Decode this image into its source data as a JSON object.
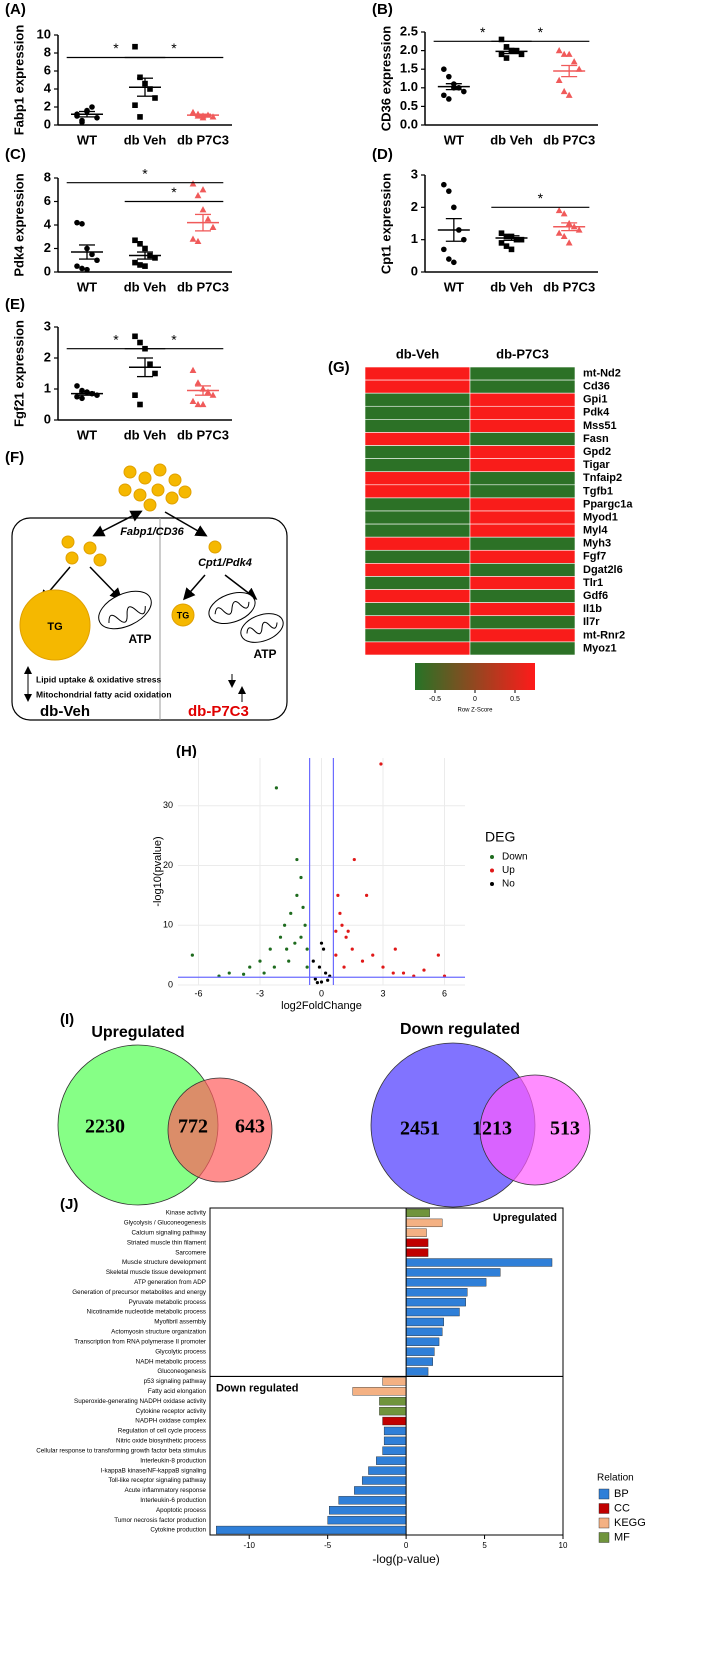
{
  "chart_data": [
    {
      "type": "dot",
      "panel": "(A)",
      "ylabel": "Fabp1 expression",
      "categories": [
        "WT",
        "db Veh",
        "db P7C3"
      ],
      "ylim": [
        0,
        10
      ],
      "yticks": [
        0,
        2,
        4,
        6,
        8,
        10
      ],
      "groups": [
        {
          "color": "#000000",
          "marker": "circle",
          "values": [
            1.0,
            0.5,
            1.5,
            2.0,
            0.8,
            1.2,
            0.3,
            1.6
          ],
          "mean": 1.2,
          "sem": 0.3
        },
        {
          "color": "#000000",
          "marker": "square",
          "values": [
            8.7,
            5.3,
            4.6,
            4.0,
            3.0,
            2.2,
            0.9
          ],
          "mean": 4.2,
          "sem": 1.0
        },
        {
          "color": "#f05a5a",
          "marker": "triangle",
          "values": [
            1.4,
            1.2,
            1.0,
            1.1,
            0.9,
            1.3,
            1.0,
            0.8
          ],
          "mean": 1.1,
          "sem": 0.1
        }
      ],
      "significance": [
        {
          "label": "*",
          "groups": [
            0,
            1
          ],
          "y": 7.5
        },
        {
          "label": "*",
          "groups": [
            1,
            2
          ],
          "y": 7.5
        }
      ]
    },
    {
      "type": "dot",
      "panel": "(B)",
      "ylabel": "CD36 expression",
      "categories": [
        "WT",
        "db Veh",
        "db P7C3"
      ],
      "ylim": [
        0,
        2.5
      ],
      "yticks": [
        {
          "value": 0,
          "label": "0.0"
        },
        0.5,
        {
          "value": 1,
          "label": "1.0"
        },
        1.5,
        {
          "value": 2,
          "label": "2.0"
        },
        2.5
      ],
      "groups": [
        {
          "color": "#000000",
          "marker": "circle",
          "values": [
            1.5,
            1.3,
            1.1,
            1.0,
            0.9,
            0.8,
            0.7,
            1.0
          ],
          "mean": 1.03,
          "sem": 0.08
        },
        {
          "color": "#000000",
          "marker": "square",
          "values": [
            2.3,
            2.1,
            2.0,
            2.0,
            1.9,
            1.9,
            1.8,
            2.0
          ],
          "mean": 1.98,
          "sem": 0.06
        },
        {
          "color": "#f05a5a",
          "marker": "triangle",
          "values": [
            2.0,
            1.9,
            1.9,
            1.7,
            1.5,
            1.2,
            0.9,
            0.8
          ],
          "mean": 1.45,
          "sem": 0.15
        }
      ],
      "significance": [
        {
          "label": "*",
          "groups": [
            0,
            1
          ],
          "y": 2.25
        },
        {
          "label": "*",
          "groups": [
            1,
            2
          ],
          "y": 2.25
        }
      ]
    },
    {
      "type": "dot",
      "panel": "(C)",
      "ylabel": "Pdk4 expression",
      "categories": [
        "WT",
        "db Veh",
        "db P7C3"
      ],
      "ylim": [
        0,
        8
      ],
      "yticks": [
        0,
        2,
        4,
        6,
        8
      ],
      "groups": [
        {
          "color": "#000000",
          "marker": "circle",
          "values": [
            4.2,
            4.1,
            2.0,
            1.5,
            1.0,
            0.5,
            0.3,
            0.2
          ],
          "mean": 1.7,
          "sem": 0.6
        },
        {
          "color": "#000000",
          "marker": "square",
          "values": [
            2.7,
            2.4,
            2.0,
            1.4,
            1.2,
            0.8,
            0.6,
            0.5
          ],
          "mean": 1.4,
          "sem": 0.3
        },
        {
          "color": "#f05a5a",
          "marker": "triangle",
          "values": [
            7.5,
            6.5,
            5.3,
            4.5,
            3.8,
            2.8,
            2.6,
            7.0
          ],
          "mean": 4.2,
          "sem": 0.7
        }
      ],
      "significance": [
        {
          "label": "*",
          "groups": [
            0,
            2
          ],
          "y": 7.6
        },
        {
          "label": "*",
          "groups": [
            1,
            2
          ],
          "y": 6.0
        }
      ]
    },
    {
      "type": "dot",
      "panel": "(D)",
      "ylabel": "Cpt1 expression",
      "categories": [
        "WT",
        "db Veh",
        "db P7C3"
      ],
      "ylim": [
        0,
        3
      ],
      "yticks": [
        0,
        1,
        2,
        3
      ],
      "groups": [
        {
          "color": "#000000",
          "marker": "circle",
          "values": [
            2.7,
            2.5,
            2.0,
            1.3,
            1.0,
            0.7,
            0.4,
            0.3
          ],
          "mean": 1.3,
          "sem": 0.35
        },
        {
          "color": "#000000",
          "marker": "square",
          "values": [
            1.2,
            1.1,
            1.1,
            1.0,
            1.0,
            0.9,
            0.8,
            0.7
          ],
          "mean": 1.05,
          "sem": 0.07
        },
        {
          "color": "#f05a5a",
          "marker": "triangle",
          "values": [
            1.9,
            1.8,
            1.5,
            1.4,
            1.3,
            1.2,
            1.1,
            0.9
          ],
          "mean": 1.4,
          "sem": 0.12
        }
      ],
      "significance": [
        {
          "label": "*",
          "groups": [
            1,
            2
          ],
          "y": 2.0
        }
      ]
    },
    {
      "type": "dot",
      "panel": "(E)",
      "ylabel": "Fgf21 expression",
      "categories": [
        "WT",
        "db Veh",
        "db P7C3"
      ],
      "ylim": [
        0,
        3
      ],
      "yticks": [
        0,
        1,
        2,
        3
      ],
      "groups": [
        {
          "color": "#000000",
          "marker": "circle",
          "values": [
            1.1,
            0.95,
            0.9,
            0.85,
            0.8,
            0.75,
            0.7
          ],
          "mean": 0.85,
          "sem": 0.05
        },
        {
          "color": "#000000",
          "marker": "square",
          "values": [
            2.7,
            2.5,
            2.3,
            1.8,
            1.5,
            0.8,
            0.5
          ],
          "mean": 1.7,
          "sem": 0.3
        },
        {
          "color": "#f05a5a",
          "marker": "triangle",
          "values": [
            1.6,
            1.2,
            1.0,
            0.9,
            0.8,
            0.6,
            0.5,
            0.5
          ],
          "mean": 0.95,
          "sem": 0.15
        }
      ],
      "significance": [
        {
          "label": "*",
          "groups": [
            0,
            1
          ],
          "y": 2.3
        },
        {
          "label": "*",
          "groups": [
            1,
            2
          ],
          "y": 2.3
        }
      ]
    },
    {
      "type": "heatmap",
      "panel": "(G)",
      "columns": [
        "db-Veh",
        "db-P7C3"
      ],
      "rows": [
        "mt-Nd2",
        "Cd36",
        "Gpi1",
        "Pdk4",
        "Mss51",
        "Fasn",
        "Gpd2",
        "Tigar",
        "Tnfaip2",
        "Tgfb1",
        "Ppargc1a",
        "Myod1",
        "Myl4",
        "Myh3",
        "Fgf7",
        "Dgat2l6",
        "Tlr1",
        "Gdf6",
        "Il1b",
        "Il7r",
        "mt-Rnr2",
        "Myoz1"
      ],
      "values": [
        [
          0.71,
          -0.71
        ],
        [
          0.71,
          -0.71
        ],
        [
          -0.71,
          0.71
        ],
        [
          -0.71,
          0.71
        ],
        [
          -0.71,
          0.71
        ],
        [
          0.71,
          -0.71
        ],
        [
          -0.71,
          0.71
        ],
        [
          -0.71,
          0.71
        ],
        [
          0.71,
          -0.71
        ],
        [
          0.71,
          -0.71
        ],
        [
          -0.71,
          0.71
        ],
        [
          -0.71,
          0.71
        ],
        [
          -0.71,
          0.71
        ],
        [
          0.71,
          -0.71
        ],
        [
          -0.71,
          0.71
        ],
        [
          0.71,
          -0.71
        ],
        [
          -0.71,
          0.71
        ],
        [
          0.71,
          -0.71
        ],
        [
          -0.71,
          0.71
        ],
        [
          0.71,
          -0.71
        ],
        [
          -0.71,
          0.71
        ],
        [
          0.71,
          -0.71
        ]
      ],
      "colors": [
        "#267326",
        "#ff1a1a"
      ],
      "zlim": [
        -0.75,
        0.75
      ],
      "colorbar_ticks": [
        -0.5,
        0,
        0.5
      ],
      "colorbar_label": "Row Z-Score"
    },
    {
      "type": "scatter",
      "panel": "(H)",
      "xlabel": "log2FoldChange",
      "ylabel": "-log10(pvalue)",
      "xlim": [
        -7,
        7
      ],
      "xticks": [
        -6,
        -3,
        0,
        3,
        6
      ],
      "ylim": [
        0,
        38
      ],
      "yticks": [
        0,
        10,
        20,
        30
      ],
      "grid": true,
      "legend_title": "DEG",
      "vlines": [
        -0.58,
        0.58
      ],
      "hline": 1.3,
      "line_color": "#6b6bff",
      "series": [
        {
          "name": "Down",
          "color": "#1e6b1e",
          "x": [
            -2.2,
            -1.2,
            -6.3,
            -4.5,
            -3.5,
            -3,
            -2.5,
            -2,
            -1.8,
            -1.5,
            -1.2,
            -1,
            -0.8,
            -0.7,
            -1.6,
            -2.8,
            -5,
            -3.8,
            -1,
            -0.9,
            -1.3,
            -2.3,
            -0.7,
            -1.7
          ],
          "values": [
            33,
            21,
            5,
            2,
            3,
            4,
            6,
            8,
            10,
            12,
            15,
            18,
            10,
            6,
            4,
            2,
            1.5,
            1.8,
            8,
            13,
            7,
            3,
            3,
            6
          ]
        },
        {
          "name": "Up",
          "color": "#e01818",
          "x": [
            2.9,
            1.6,
            2.2,
            0.8,
            1,
            1.2,
            0.7,
            1.5,
            2,
            3,
            4,
            5,
            5.7,
            4.5,
            3.5,
            0.9,
            1.3,
            2.5,
            1.1,
            0.7,
            3.6,
            6
          ],
          "values": [
            37,
            21,
            15,
            15,
            10,
            8,
            5,
            6,
            4,
            3,
            2,
            2.5,
            5,
            1.5,
            2,
            12,
            9,
            5,
            3,
            9,
            6,
            1.5
          ]
        },
        {
          "name": "No",
          "color": "#000000",
          "x": [
            -0.3,
            0,
            0.2,
            -0.1,
            0.4,
            -0.4,
            0.1,
            0.3,
            -0.2,
            0
          ],
          "values": [
            1,
            0.5,
            2,
            3,
            1.5,
            4,
            6,
            0.8,
            0.4,
            7
          ]
        }
      ]
    },
    {
      "type": "venn",
      "panel": "(I)",
      "title": "Upregulated",
      "values": [
        2230,
        772,
        643
      ],
      "colors": [
        "#80ff80",
        "#ff5c5c"
      ]
    },
    {
      "type": "venn",
      "title": "Down regulated",
      "values": [
        2451,
        1213,
        513
      ],
      "colors": [
        "#7a6cff",
        "#ff5cff"
      ]
    },
    {
      "type": "hbar",
      "panel": "(J)",
      "xlabel": "-log(p-value)",
      "xlim": [
        -12.5,
        10
      ],
      "xticks": [
        -10,
        -5,
        0,
        5,
        10
      ],
      "legend_title": "Relation",
      "annotations": [
        "Upregulated",
        "Down regulated"
      ],
      "categories": [
        "Kinase activity",
        "Glycolysis / Gluconeogenesis",
        "Calcium signaling pathway",
        "Striated muscle thin filament",
        "Sarcomere",
        "Muscle structure development",
        "Skeletal muscle tissue development",
        "ATP generation from ADP",
        "Generation of precursor metabolites and energy",
        "Pyruvate metabolic process",
        "Nicotinamide nucleotide metabolic process",
        "Myofibril assembly",
        "Actomyosin structure organization",
        "Transcription from RNA polymerase II promoter",
        "Glycolytic process",
        "NADH metabolic process",
        "Gluconeogenesis",
        "p53 signaling pathway",
        "Fatty acid elongation",
        "Superoxide-generating NADPH oxidase activity",
        "Cytokine receptor activity",
        "NADPH oxidase complex",
        "Regulation of cell cycle process",
        "Nitric oxide biosynthetic process",
        "Cellular response to transforming growth factor beta stimulus",
        "Interleukin-8 production",
        "I-kappaB kinase/NF-kappaB signaling",
        "Toll-like receptor signaling pathway",
        "Acute inflammatory response",
        "Interleukin-6 production",
        "Apoptotic process",
        "Tumor necrosis factor production",
        "Cytokine production"
      ],
      "series": [
        {
          "name": "BP",
          "color": "#2f7fd8",
          "values": [
            null,
            null,
            null,
            null,
            null,
            9.3,
            6.0,
            5.1,
            3.9,
            3.8,
            3.4,
            2.4,
            2.3,
            2.1,
            1.8,
            1.7,
            1.4,
            null,
            null,
            null,
            null,
            null,
            -1.4,
            -1.4,
            -1.5,
            -1.9,
            -2.4,
            -2.8,
            -3.3,
            -4.3,
            -4.9,
            -5.0,
            -12.1
          ]
        },
        {
          "name": "CC",
          "color": "#c00000",
          "values": [
            null,
            null,
            null,
            1.4,
            1.4,
            null,
            null,
            null,
            null,
            null,
            null,
            null,
            null,
            null,
            null,
            null,
            null,
            null,
            null,
            null,
            null,
            -1.5,
            null,
            null,
            null,
            null,
            null,
            null,
            null,
            null,
            null,
            null,
            null
          ]
        },
        {
          "name": "KEGG",
          "color": "#f4b183",
          "values": [
            null,
            2.3,
            1.3,
            null,
            null,
            null,
            null,
            null,
            null,
            null,
            null,
            null,
            null,
            null,
            null,
            null,
            null,
            -1.5,
            -3.4,
            null,
            null,
            null,
            null,
            null,
            null,
            null,
            null,
            null,
            null,
            null,
            null,
            null,
            null
          ]
        },
        {
          "name": "MF",
          "color": "#70943c",
          "values": [
            1.5,
            null,
            null,
            null,
            null,
            null,
            null,
            null,
            null,
            null,
            null,
            null,
            null,
            null,
            null,
            null,
            null,
            null,
            null,
            -1.7,
            -1.7,
            null,
            null,
            null,
            null,
            null,
            null,
            null,
            null,
            null,
            null,
            null,
            null
          ]
        }
      ]
    }
  ],
  "diagram": {
    "panel": "(F)",
    "left_pathway": "Fabp1/CD36",
    "right_pathway": "Cpt1/Pdk4",
    "labels": [
      "TG",
      "ATP",
      "TG",
      "ATP"
    ],
    "effects": [
      "Lipid uptake & oxidative stress",
      "Mitochondrial fatty acid oxidation"
    ],
    "groups": [
      "db-Veh",
      "db-P7C3"
    ]
  }
}
